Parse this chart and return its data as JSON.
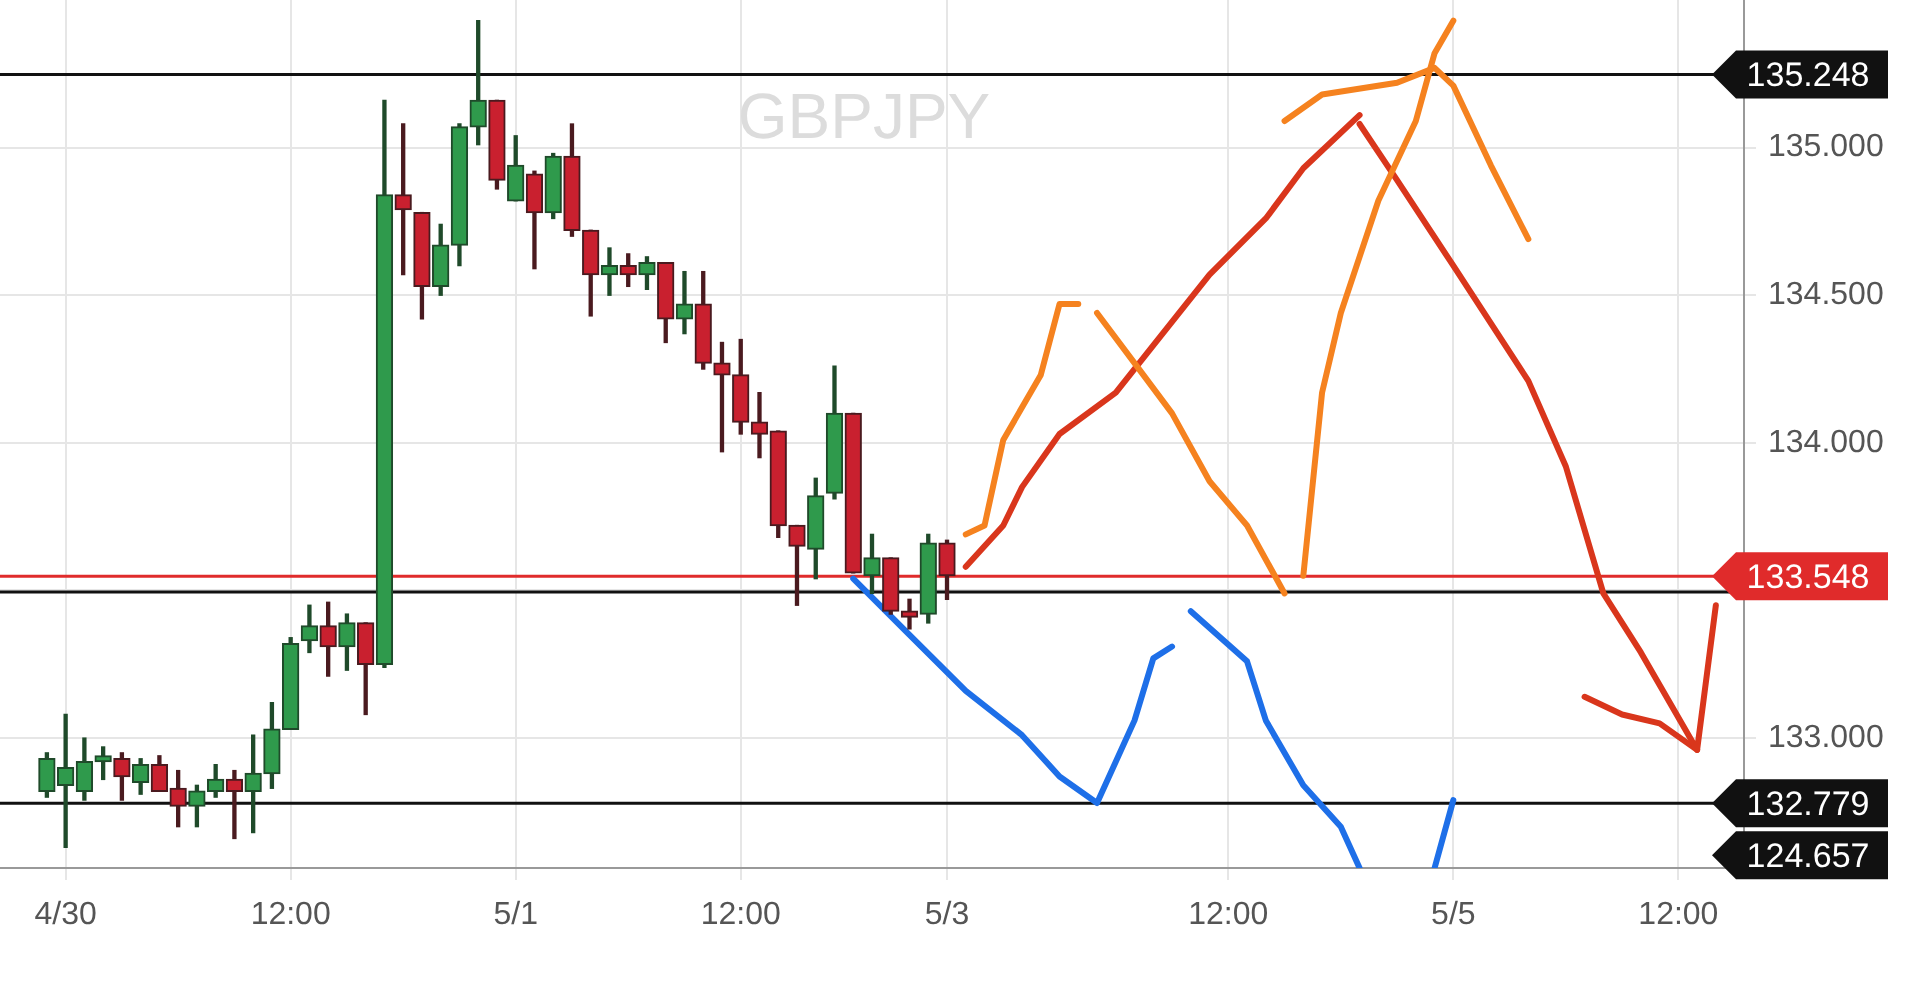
{
  "chart_data": {
    "type": "candlestick",
    "title": "GBPJPY",
    "categories": [
      null,
      null,
      null,
      "4/30",
      null,
      null,
      null,
      null,
      null,
      null,
      null,
      null,
      null,
      null,
      null,
      "12:00",
      null,
      null,
      null,
      null,
      null,
      null,
      null,
      null,
      null,
      null,
      null,
      "5/1",
      null,
      null,
      null,
      null,
      null,
      null,
      null,
      null,
      null,
      null,
      null,
      "12:00",
      null,
      null,
      null,
      null,
      null,
      null,
      null,
      null,
      null,
      null,
      "5/3",
      null,
      null,
      null,
      null,
      null,
      null,
      null,
      null,
      null,
      null,
      null,
      null,
      null,
      null,
      "12:00",
      null,
      null,
      null,
      null,
      null,
      null,
      null,
      null,
      null,
      null,
      null,
      "5/5",
      null,
      null,
      null,
      null,
      null,
      null,
      null,
      null,
      null,
      null,
      null,
      "12:00",
      null,
      null,
      null
    ],
    "ohlc": [
      null,
      null,
      [
        132.82,
        132.95,
        132.8,
        132.93
      ],
      [
        132.84,
        133.08,
        132.63,
        132.9
      ],
      [
        132.82,
        133.0,
        132.79,
        132.92
      ],
      [
        132.92,
        132.97,
        132.86,
        132.94
      ],
      [
        132.93,
        132.95,
        132.79,
        132.87
      ],
      [
        132.85,
        132.93,
        132.81,
        132.91
      ],
      [
        132.91,
        132.94,
        132.82,
        132.82
      ],
      [
        132.83,
        132.89,
        132.7,
        132.77
      ],
      [
        132.77,
        132.84,
        132.7,
        132.82
      ],
      [
        132.82,
        132.91,
        132.8,
        132.86
      ],
      [
        132.86,
        132.89,
        132.66,
        132.82
      ],
      [
        132.82,
        133.01,
        132.68,
        132.88
      ],
      [
        132.88,
        133.12,
        132.83,
        133.03
      ],
      [
        133.03,
        133.34,
        133.03,
        133.32
      ],
      [
        133.33,
        133.45,
        133.29,
        133.38
      ],
      [
        133.38,
        133.46,
        133.21,
        133.31
      ],
      [
        133.31,
        133.42,
        133.23,
        133.39
      ],
      [
        133.39,
        133.39,
        133.08,
        133.25
      ],
      [
        133.25,
        135.16,
        133.24,
        134.84
      ],
      [
        134.84,
        135.08,
        134.57,
        134.79
      ],
      [
        134.78,
        134.78,
        134.42,
        134.53
      ],
      [
        134.53,
        134.74,
        134.5,
        134.67
      ],
      [
        134.67,
        135.08,
        134.6,
        135.07
      ],
      [
        135.07,
        135.43,
        135.01,
        135.16
      ],
      [
        135.16,
        135.16,
        134.86,
        134.89
      ],
      [
        134.82,
        135.04,
        134.82,
        134.94
      ],
      [
        134.91,
        134.92,
        134.59,
        134.78
      ],
      [
        134.78,
        134.98,
        134.76,
        134.97
      ],
      [
        134.97,
        135.08,
        134.7,
        134.72
      ],
      [
        134.72,
        134.72,
        134.43,
        134.57
      ],
      [
        134.57,
        134.66,
        134.5,
        134.6
      ],
      [
        134.6,
        134.64,
        134.53,
        134.57
      ],
      [
        134.57,
        134.63,
        134.52,
        134.61
      ],
      [
        134.61,
        134.61,
        134.34,
        134.42
      ],
      [
        134.42,
        134.58,
        134.37,
        134.47
      ],
      [
        134.47,
        134.58,
        134.25,
        134.27
      ],
      [
        134.27,
        134.34,
        133.97,
        134.23
      ],
      [
        134.23,
        134.35,
        134.03,
        134.07
      ],
      [
        134.07,
        134.17,
        133.95,
        134.03
      ],
      [
        134.04,
        134.04,
        133.68,
        133.72
      ],
      [
        133.72,
        133.72,
        133.45,
        133.65
      ],
      [
        133.64,
        133.88,
        133.54,
        133.82
      ],
      [
        133.83,
        134.26,
        133.81,
        134.1
      ],
      [
        134.1,
        134.1,
        133.56,
        133.56
      ],
      [
        133.55,
        133.69,
        133.49,
        133.61
      ],
      [
        133.61,
        133.61,
        133.42,
        133.43
      ],
      [
        133.43,
        133.47,
        133.37,
        133.41
      ],
      [
        133.42,
        133.69,
        133.39,
        133.66
      ],
      [
        133.66,
        133.67,
        133.47,
        133.55
      ],
      null,
      null,
      null,
      null,
      null,
      null,
      null,
      null,
      null,
      null,
      null,
      null,
      null,
      null,
      null,
      null,
      null,
      null,
      null,
      null,
      null,
      null,
      null,
      null,
      null,
      null,
      null,
      null,
      null,
      null,
      null,
      null,
      null,
      null,
      null,
      null,
      null,
      null,
      null,
      null,
      null,
      null
    ],
    "series": [
      {
        "type": "line",
        "color": "#f5821f",
        "values": [
          null,
          null,
          null,
          null,
          null,
          null,
          null,
          null,
          null,
          null,
          null,
          null,
          null,
          null,
          null,
          null,
          null,
          null,
          null,
          null,
          null,
          null,
          null,
          null,
          null,
          null,
          null,
          null,
          null,
          null,
          null,
          null,
          null,
          null,
          null,
          null,
          null,
          null,
          null,
          null,
          null,
          null,
          null,
          null,
          null,
          null,
          null,
          null,
          null,
          null,
          null,
          133.69,
          133.72,
          134.01,
          null,
          134.23,
          134.47,
          134.47,
          null,
          null,
          null,
          null,
          null,
          null,
          null,
          null,
          null,
          null,
          null,
          null,
          null,
          null,
          null,
          null,
          null,
          null,
          null,
          null,
          null,
          null,
          null,
          null,
          null,
          null,
          null,
          null,
          null,
          null,
          null,
          null,
          null,
          null,
          null
        ]
      },
      {
        "type": "line",
        "color": "#f5821f",
        "values": [
          null,
          null,
          null,
          null,
          null,
          null,
          null,
          null,
          null,
          null,
          null,
          null,
          null,
          null,
          null,
          null,
          null,
          null,
          null,
          null,
          null,
          null,
          null,
          null,
          null,
          null,
          null,
          null,
          null,
          null,
          null,
          null,
          null,
          null,
          null,
          null,
          null,
          null,
          null,
          null,
          null,
          null,
          null,
          null,
          null,
          null,
          null,
          null,
          null,
          null,
          null,
          null,
          null,
          null,
          null,
          null,
          null,
          null,
          134.44,
          null,
          134.27,
          null,
          134.1,
          null,
          133.87,
          null,
          133.72,
          null,
          133.49,
          null,
          null,
          null,
          null,
          null,
          null,
          null,
          null,
          null,
          null,
          null,
          null,
          null,
          null,
          null,
          null,
          null,
          null,
          null,
          null,
          null,
          null,
          null,
          null
        ]
      },
      {
        "type": "line",
        "color": "#f5821f",
        "values": [
          null,
          null,
          null,
          null,
          null,
          null,
          null,
          null,
          null,
          null,
          null,
          null,
          null,
          null,
          null,
          null,
          null,
          null,
          null,
          null,
          null,
          null,
          null,
          null,
          null,
          null,
          null,
          null,
          null,
          null,
          null,
          null,
          null,
          null,
          null,
          null,
          null,
          null,
          null,
          null,
          null,
          null,
          null,
          null,
          null,
          null,
          null,
          null,
          null,
          null,
          null,
          null,
          null,
          null,
          null,
          null,
          null,
          null,
          null,
          null,
          null,
          null,
          null,
          null,
          null,
          null,
          null,
          null,
          null,
          133.55,
          134.17,
          134.44,
          null,
          134.82,
          null,
          135.09,
          135.32,
          135.43,
          null,
          null,
          null,
          null,
          null,
          null,
          null,
          null,
          null,
          null,
          null,
          null,
          null,
          null,
          null
        ]
      },
      {
        "type": "line",
        "color": "#f5821f",
        "values": [
          null,
          null,
          null,
          null,
          null,
          null,
          null,
          null,
          null,
          null,
          null,
          null,
          null,
          null,
          null,
          null,
          null,
          null,
          null,
          null,
          null,
          null,
          null,
          null,
          null,
          null,
          null,
          null,
          null,
          null,
          null,
          null,
          null,
          null,
          null,
          null,
          null,
          null,
          null,
          null,
          null,
          null,
          null,
          null,
          null,
          null,
          null,
          null,
          null,
          null,
          null,
          null,
          null,
          null,
          null,
          null,
          null,
          null,
          null,
          null,
          null,
          null,
          null,
          null,
          null,
          null,
          null,
          null,
          135.09,
          null,
          135.18,
          null,
          null,
          null,
          135.22,
          null,
          135.27,
          135.21,
          null,
          134.94,
          null,
          134.69,
          null,
          null,
          null,
          null,
          null,
          null,
          null,
          null,
          null,
          null,
          null
        ]
      },
      {
        "type": "line",
        "color": "#d9361c",
        "values": [
          null,
          null,
          null,
          null,
          null,
          null,
          null,
          null,
          null,
          null,
          null,
          null,
          null,
          null,
          null,
          null,
          null,
          null,
          null,
          null,
          null,
          null,
          null,
          null,
          null,
          null,
          null,
          null,
          null,
          null,
          null,
          null,
          null,
          null,
          null,
          null,
          null,
          null,
          null,
          null,
          null,
          null,
          null,
          null,
          null,
          null,
          null,
          null,
          null,
          null,
          null,
          133.58,
          null,
          133.72,
          133.85,
          null,
          134.03,
          null,
          null,
          134.17,
          null,
          134.33,
          null,
          null,
          134.57,
          null,
          null,
          134.76,
          null,
          134.93,
          null,
          null,
          135.11,
          null,
          null,
          null,
          null,
          null,
          null,
          null,
          null,
          null,
          null,
          null,
          null,
          null,
          null,
          null,
          null,
          null,
          null,
          null,
          null
        ]
      },
      {
        "type": "line",
        "color": "#d9361c",
        "values": [
          null,
          null,
          null,
          null,
          null,
          null,
          null,
          null,
          null,
          null,
          null,
          null,
          null,
          null,
          null,
          null,
          null,
          null,
          null,
          null,
          null,
          null,
          null,
          null,
          null,
          null,
          null,
          null,
          null,
          null,
          null,
          null,
          null,
          null,
          null,
          null,
          null,
          null,
          null,
          null,
          null,
          null,
          null,
          null,
          null,
          null,
          null,
          null,
          null,
          null,
          null,
          null,
          null,
          null,
          null,
          null,
          null,
          null,
          null,
          null,
          null,
          null,
          null,
          null,
          null,
          null,
          null,
          null,
          null,
          null,
          null,
          null,
          135.08,
          null,
          134.89,
          null,
          null,
          134.6,
          null,
          null,
          null,
          134.21,
          null,
          133.92,
          null,
          133.49,
          null,
          133.29,
          null,
          null,
          132.96,
          133.45,
          null
        ]
      },
      {
        "type": "line",
        "color": "#d9361c",
        "values": [
          null,
          null,
          null,
          null,
          null,
          null,
          null,
          null,
          null,
          null,
          null,
          null,
          null,
          null,
          null,
          null,
          null,
          null,
          null,
          null,
          null,
          null,
          null,
          null,
          null,
          null,
          null,
          null,
          null,
          null,
          null,
          null,
          null,
          null,
          null,
          null,
          null,
          null,
          null,
          null,
          null,
          null,
          null,
          null,
          null,
          null,
          null,
          null,
          null,
          null,
          null,
          null,
          null,
          null,
          null,
          null,
          null,
          null,
          null,
          null,
          null,
          null,
          null,
          null,
          null,
          null,
          null,
          null,
          null,
          null,
          null,
          null,
          null,
          null,
          null,
          null,
          null,
          null,
          null,
          null,
          null,
          null,
          null,
          null,
          133.14,
          null,
          133.08,
          null,
          133.05,
          null,
          132.96,
          null,
          null
        ]
      },
      {
        "type": "line",
        "color": "#1e6fe8",
        "values": [
          null,
          null,
          null,
          null,
          null,
          null,
          null,
          null,
          null,
          null,
          null,
          null,
          null,
          null,
          null,
          null,
          null,
          null,
          null,
          null,
          null,
          null,
          null,
          null,
          null,
          null,
          null,
          null,
          null,
          null,
          null,
          null,
          null,
          null,
          null,
          null,
          null,
          null,
          null,
          null,
          null,
          null,
          null,
          null,
          null,
          133.54,
          null,
          null,
          133.35,
          null,
          null,
          133.16,
          null,
          null,
          133.01,
          null,
          132.87,
          null,
          132.78,
          null,
          133.06,
          133.27,
          133.31,
          null,
          null,
          null,
          null,
          null,
          null,
          null,
          null,
          null,
          null,
          null,
          null,
          null,
          null,
          null,
          null,
          null,
          null,
          null,
          null,
          null,
          null,
          null,
          null,
          null,
          null,
          null,
          null,
          null,
          null
        ]
      },
      {
        "type": "line",
        "color": "#1e6fe8",
        "values": [
          null,
          null,
          null,
          null,
          null,
          null,
          null,
          null,
          null,
          null,
          null,
          null,
          null,
          null,
          null,
          null,
          null,
          null,
          null,
          null,
          null,
          null,
          null,
          null,
          null,
          null,
          null,
          null,
          null,
          null,
          null,
          null,
          null,
          null,
          null,
          null,
          null,
          null,
          null,
          null,
          null,
          null,
          null,
          null,
          null,
          null,
          null,
          null,
          null,
          null,
          null,
          null,
          null,
          null,
          null,
          null,
          null,
          null,
          null,
          null,
          null,
          null,
          null,
          133.43,
          null,
          null,
          133.26,
          133.06,
          null,
          132.84,
          null,
          132.7,
          132.56,
          null,
          null,
          null,
          null,
          null,
          null,
          null,
          null,
          null,
          null,
          null,
          null,
          null,
          null,
          null,
          null,
          null,
          null,
          null,
          null
        ]
      },
      {
        "type": "line",
        "color": "#1e6fe8",
        "values": [
          null,
          null,
          null,
          null,
          null,
          null,
          null,
          null,
          null,
          null,
          null,
          null,
          null,
          null,
          null,
          null,
          null,
          null,
          null,
          null,
          null,
          null,
          null,
          null,
          null,
          null,
          null,
          null,
          null,
          null,
          null,
          null,
          null,
          null,
          null,
          null,
          null,
          null,
          null,
          null,
          null,
          null,
          null,
          null,
          null,
          null,
          null,
          null,
          null,
          null,
          null,
          null,
          null,
          null,
          null,
          null,
          null,
          null,
          null,
          null,
          null,
          null,
          null,
          null,
          null,
          null,
          null,
          null,
          null,
          null,
          null,
          null,
          null,
          null,
          null,
          null,
          132.56,
          132.79,
          null,
          null,
          null,
          null,
          null,
          null,
          null,
          null,
          null,
          null,
          null,
          null,
          null,
          null,
          null
        ]
      }
    ],
    "ylim": [
      132.56,
      135.5
    ],
    "yticks": [
      {
        "value": 133,
        "label": "133.000"
      },
      {
        "value": 133.5,
        "label": null
      },
      {
        "value": 134,
        "label": "134.000"
      },
      {
        "value": 134.5,
        "label": "134.500"
      },
      {
        "value": 135,
        "label": "135.000"
      }
    ],
    "ref_lines": [
      {
        "axis": "y",
        "value": 135.248,
        "label": "135.248",
        "color": "#111111"
      },
      {
        "axis": "y",
        "value": 133.495,
        "label": null,
        "color": "#111111"
      },
      {
        "axis": "y",
        "value": 133.548,
        "label": "133.548",
        "color": "#e02b2b"
      },
      {
        "axis": "y",
        "value": 132.779,
        "label": "132.779",
        "color": "#111111"
      }
    ],
    "annotations": [
      "124.657"
    ],
    "grid": true,
    "legend": false,
    "marker": "none",
    "line_style": "solid"
  }
}
